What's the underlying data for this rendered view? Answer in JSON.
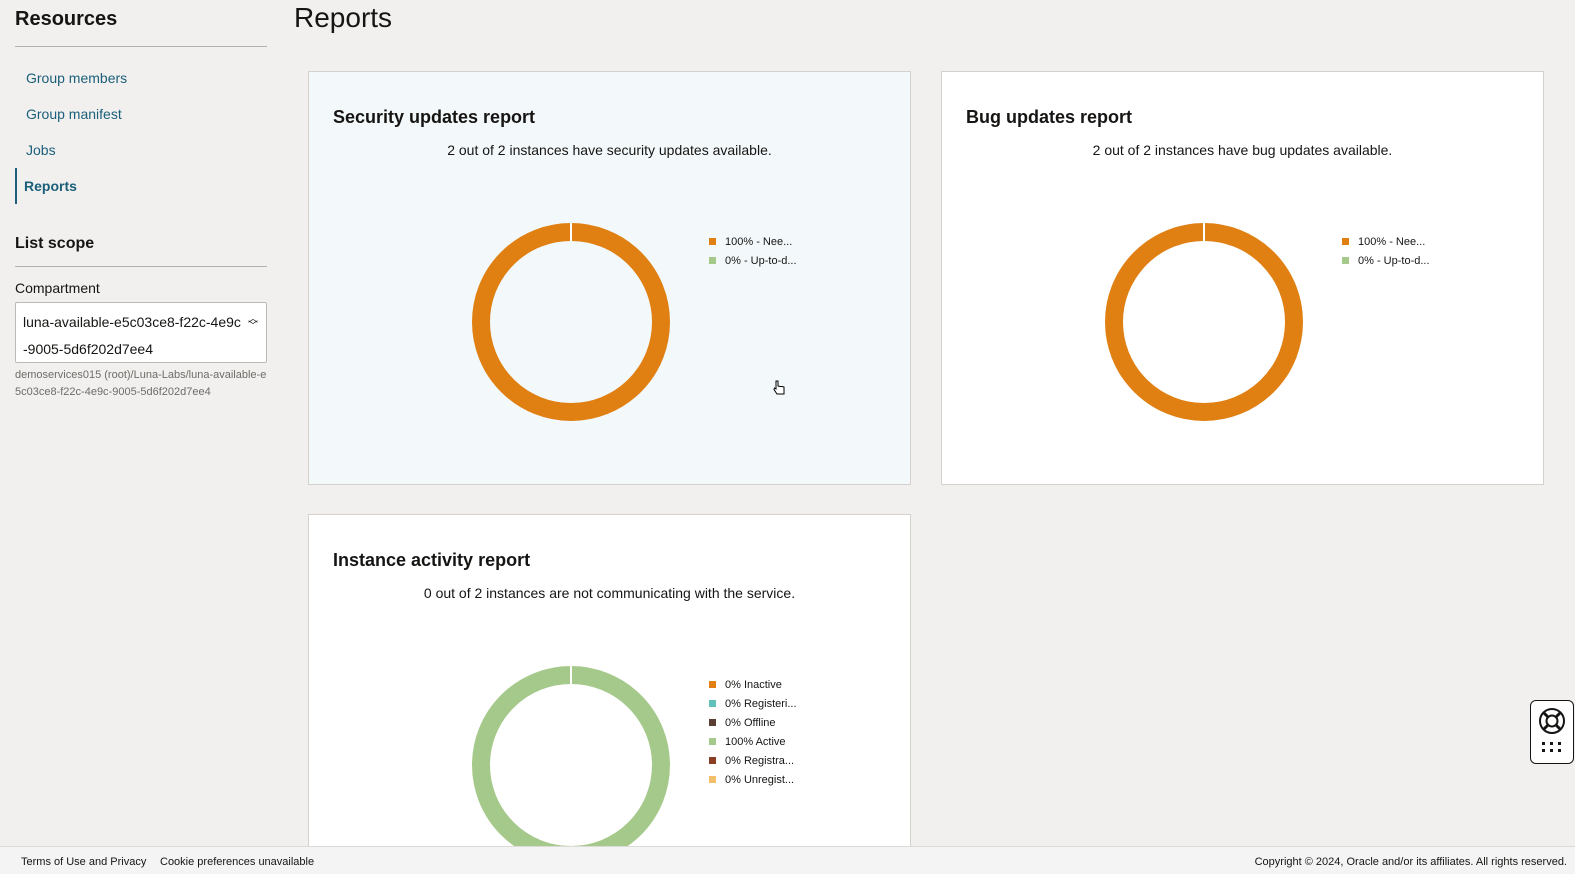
{
  "sidebar": {
    "title": "Resources",
    "items": [
      {
        "label": "Group members"
      },
      {
        "label": "Group manifest"
      },
      {
        "label": "Jobs"
      },
      {
        "label": "Reports"
      }
    ],
    "active_item": "Reports",
    "scope_title": "List scope",
    "compartment_label": "Compartment",
    "compartment_value": "luna-available-e5c03ce8-f22c-4e9c-9005-5d6f202d7ee4",
    "compartment_path": "demoservices015 (root)/Luna-Labs/luna-available-e5c03ce8-f22c-4e9c-9005-5d6f202d7ee4"
  },
  "page": {
    "title": "Reports"
  },
  "reports": {
    "security": {
      "title": "Security updates report",
      "summary": "2 out of 2 instances have security updates available.",
      "legend": [
        {
          "label": "100% - Nee...",
          "color": "#e07f12"
        },
        {
          "label": "0% - Up-to-d...",
          "color": "#a5c98a"
        }
      ]
    },
    "bug": {
      "title": "Bug updates report",
      "summary": "2 out of 2 instances have bug updates available.",
      "legend": [
        {
          "label": "100% - Nee...",
          "color": "#e07f12"
        },
        {
          "label": "0% - Up-to-d...",
          "color": "#a5c98a"
        }
      ]
    },
    "activity": {
      "title": "Instance activity report",
      "summary": "0 out of 2 instances are not communicating with the service.",
      "legend": [
        {
          "label": "0% Inactive",
          "color": "#e07f12"
        },
        {
          "label": "0% Registeri...",
          "color": "#5ec2b8"
        },
        {
          "label": "0% Offline",
          "color": "#5a3e34"
        },
        {
          "label": "100% Active",
          "color": "#a5c98a"
        },
        {
          "label": "0% Registra...",
          "color": "#8a3f24"
        },
        {
          "label": "0% Unregist...",
          "color": "#f2c06b"
        }
      ]
    }
  },
  "chart_data": [
    {
      "type": "pie",
      "categories": [
        "100% - Nee...",
        "0% - Up-to-d..."
      ],
      "values": [
        100,
        0
      ]
    },
    {
      "type": "pie",
      "categories": [
        "100% - Nee...",
        "0% - Up-to-d..."
      ],
      "values": [
        100,
        0
      ]
    },
    {
      "type": "pie",
      "categories": [
        "0% Inactive",
        "0% Registeri...",
        "0% Offline",
        "100% Active",
        "0% Registra...",
        "0% Unregist..."
      ],
      "values": [
        0,
        0,
        0,
        100,
        0,
        0
      ]
    }
  ],
  "footer": {
    "terms": "Terms of Use and Privacy",
    "cookies": "Cookie preferences unavailable",
    "copyright": "Copyright © 2024, Oracle and/or its affiliates. All rights reserved."
  },
  "icons": {
    "help": "lifebuoy-icon",
    "apps": "grid-dots-icon",
    "cursor": "hand-pointer-icon"
  }
}
